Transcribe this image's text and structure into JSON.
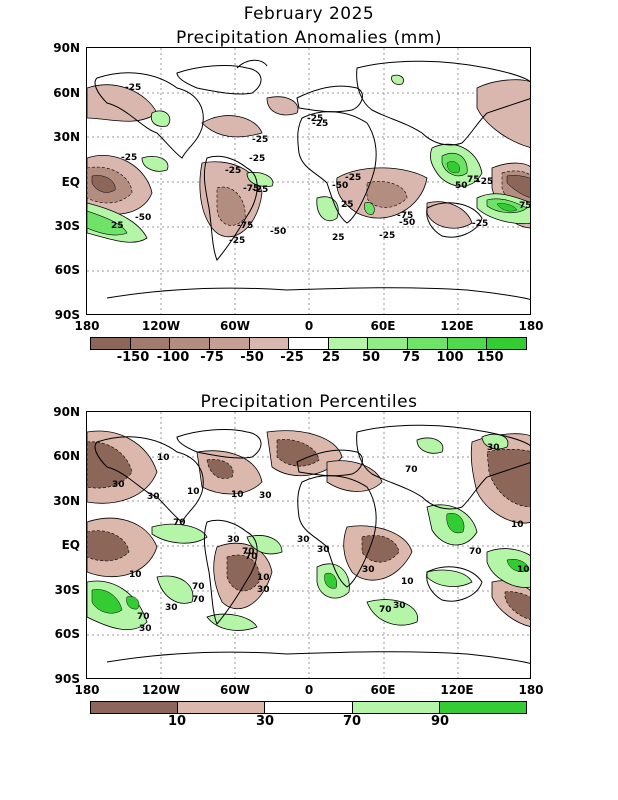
{
  "header": {
    "title": "February 2025",
    "subtitle": "Precipitation Anomalies (mm)"
  },
  "panel2": {
    "title": "Precipitation Percentiles"
  },
  "axes": {
    "lat_labels": [
      "90N",
      "60N",
      "30N",
      "EQ",
      "30S",
      "60S",
      "90S"
    ],
    "lon_labels": [
      "180",
      "120W",
      "60W",
      "0",
      "60E",
      "120E",
      "180"
    ]
  },
  "anomaly_colorbar": {
    "colors": [
      "#8b6659",
      "#a27b6e",
      "#b48d81",
      "#c59f94",
      "#d9b7ae",
      "#ffffff",
      "#b4f5a8",
      "#90ec84",
      "#6ee367",
      "#4fd94c",
      "#33cc33"
    ],
    "labels": [
      "-150",
      "-100",
      "-75",
      "-50",
      "-25",
      "25",
      "50",
      "75",
      "100",
      "150"
    ]
  },
  "percentile_colorbar": {
    "colors": [
      "#8b6659",
      "#dbb7ac",
      "#ffffff",
      "#b4f5a8",
      "#33cc33"
    ],
    "labels": [
      "10",
      "30",
      "70",
      "90"
    ]
  },
  "anomaly_contour_labels": [
    "-25",
    "-25",
    "-25",
    "-25",
    "-25",
    "-25",
    "-50",
    "-75",
    "-50",
    "-25",
    "-50",
    "-75",
    "-25",
    "25",
    "50",
    "75",
    "25",
    "-25",
    "-50",
    "-25",
    "25",
    "75",
    "-75",
    "-25",
    "-25",
    "-25"
  ],
  "percentile_contour_labels": [
    "10",
    "30",
    "10",
    "30",
    "10",
    "30",
    "70",
    "30",
    "70",
    "10",
    "70",
    "10",
    "30",
    "70",
    "30",
    "10",
    "30",
    "70",
    "30",
    "30",
    "70",
    "10",
    "30",
    "70",
    "70",
    "10",
    "30",
    "30",
    "70"
  ]
}
